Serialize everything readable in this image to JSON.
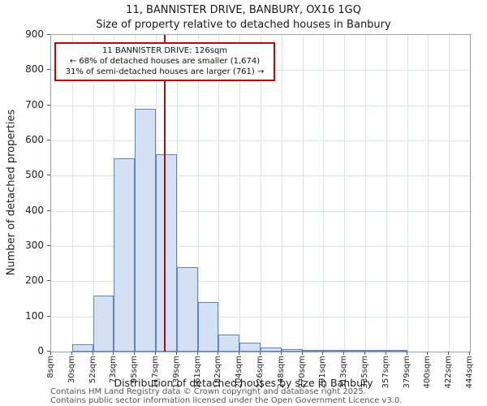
{
  "title": {
    "line1": "11, BANNISTER DRIVE, BANBURY, OX16 1GQ",
    "line2": "Size of property relative to detached houses in Banbury"
  },
  "annotation": {
    "line1": "11 BANNISTER DRIVE: 126sqm",
    "line2": "← 68% of detached houses are smaller (1,674)",
    "line3": "31% of semi-detached houses are larger (761) →"
  },
  "footer": {
    "line1": "Contains HM Land Registry data © Crown copyright and database right 2025.",
    "line2": "Contains public sector information licensed under the Open Government Licence v3.0."
  },
  "chart_data": {
    "type": "bar",
    "title": "11, BANNISTER DRIVE, BANBURY, OX16 1GQ",
    "subtitle": "Size of property relative to detached houses in Banbury",
    "xlabel": "Distribution of detached houses by size in Banbury",
    "ylabel": "Number of detached properties",
    "bin_edges_sqm": [
      8,
      30,
      52,
      73,
      95,
      117,
      139,
      161,
      182,
      204,
      226,
      248,
      270,
      291,
      313,
      335,
      357,
      379,
      400,
      422,
      444
    ],
    "x_tick_labels": [
      "8sqm",
      "30sqm",
      "52sqm",
      "73sqm",
      "95sqm",
      "117sqm",
      "139sqm",
      "161sqm",
      "182sqm",
      "204sqm",
      "226sqm",
      "248sqm",
      "270sqm",
      "291sqm",
      "313sqm",
      "335sqm",
      "357sqm",
      "379sqm",
      "400sqm",
      "422sqm",
      "444sqm"
    ],
    "values": [
      0,
      20,
      160,
      550,
      690,
      560,
      240,
      140,
      48,
      25,
      12,
      8,
      5,
      3,
      2,
      2,
      1,
      0,
      0,
      0
    ],
    "ylim": [
      0,
      900
    ],
    "y_ticks": [
      0,
      100,
      200,
      300,
      400,
      500,
      600,
      700,
      800,
      900
    ],
    "marker_value_sqm": 126,
    "grid": true,
    "legend": "none",
    "colors": {
      "bar_fill": "#d4e0f4",
      "bar_border": "#5e85c6",
      "marker_line": "#a90f0f",
      "grid_line": "#dbe2f0",
      "annotation_border": "#cc0000"
    }
  }
}
